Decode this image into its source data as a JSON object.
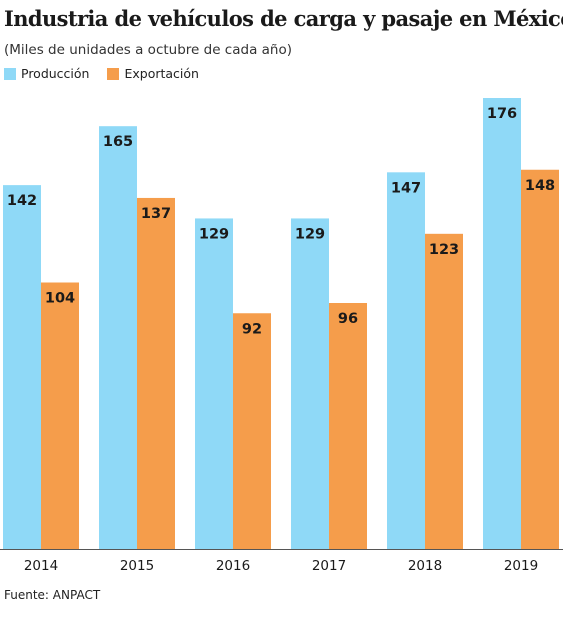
{
  "title": "Industria de vehículos de carga y pasaje en México",
  "subtitle": "(Miles de unidades a octubre de cada año)",
  "source": "Fuente: ANPACT",
  "colors": {
    "produccion": "#8fd9f7",
    "exportacion": "#f59d4b",
    "axis": "#555555"
  },
  "chart_data": {
    "type": "bar",
    "categories": [
      "2014",
      "2015",
      "2016",
      "2017",
      "2018",
      "2019"
    ],
    "series": [
      {
        "name": "Producción",
        "values": [
          142,
          165,
          129,
          129,
          147,
          176
        ]
      },
      {
        "name": "Exportación",
        "values": [
          104,
          137,
          92,
          96,
          123,
          148
        ]
      }
    ],
    "title": "Industria de vehículos de carga y pasaje en México",
    "subtitle": "(Miles de unidades a octubre de cada año)",
    "xlabel": "",
    "ylabel": "",
    "ylim": [
      0,
      180
    ],
    "grid": false,
    "legend": "top-left",
    "data_labels": true
  }
}
